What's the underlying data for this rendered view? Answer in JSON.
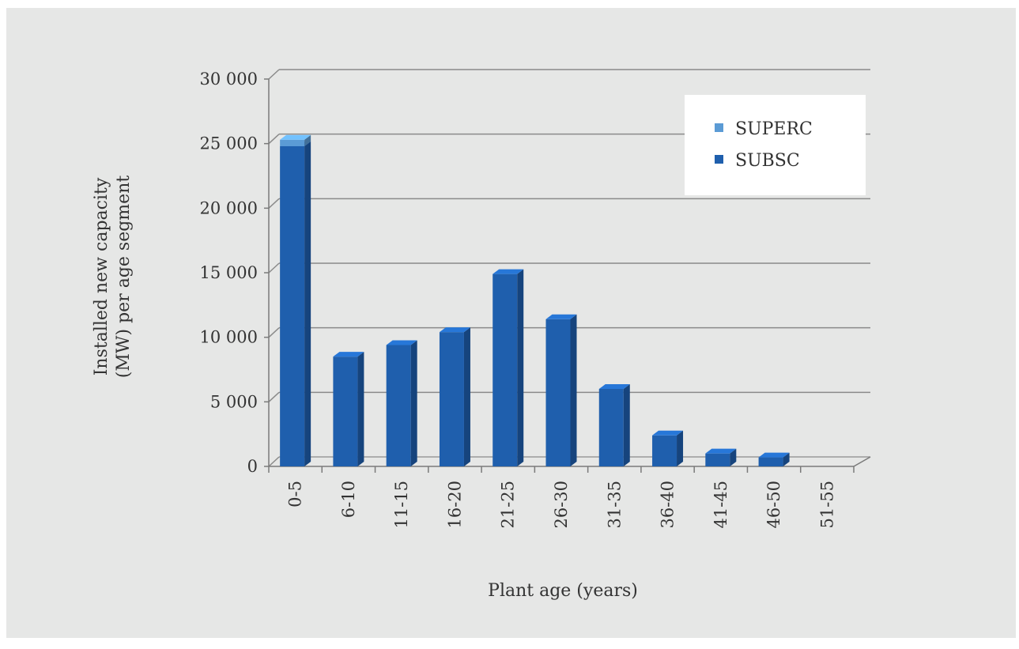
{
  "chart_data": {
    "type": "bar",
    "title": "",
    "xlabel": "Plant age (years)",
    "ylabel_line1": "Installed new capacity",
    "ylabel_line2": "(MW) per age segment",
    "ylim": [
      0,
      30000
    ],
    "y_ticks": [
      0,
      5000,
      10000,
      15000,
      20000,
      25000,
      30000
    ],
    "y_tick_labels": [
      "0",
      "5 000",
      "10 000",
      "15 000",
      "20 000",
      "25 000",
      "30 000"
    ],
    "categories": [
      "0-5",
      "6-10",
      "11-15",
      "16-20",
      "21-25",
      "26-30",
      "31-35",
      "36-40",
      "41-45",
      "46-50",
      "51-55"
    ],
    "series": [
      {
        "name": "SUPERC",
        "color": "#5b9bd5",
        "values": [
          500,
          0,
          0,
          0,
          0,
          0,
          0,
          0,
          0,
          0,
          0
        ]
      },
      {
        "name": "SUBSC",
        "color": "#1f5fad",
        "values": [
          24800,
          8500,
          9400,
          10400,
          14900,
          11400,
          6000,
          2400,
          1000,
          700,
          0
        ]
      }
    ],
    "stacked": true,
    "legend_position": "top-right",
    "grid": true
  }
}
